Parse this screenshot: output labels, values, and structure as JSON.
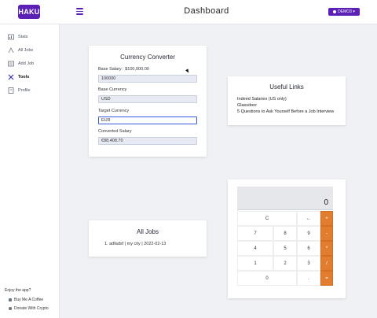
{
  "header": {
    "logo": "HAKU",
    "title": "Dashboard",
    "user_button": "DEMO3 ▾"
  },
  "sidebar": {
    "items": [
      {
        "label": "Stats",
        "icon": "stats-icon"
      },
      {
        "label": "All Jobs",
        "icon": "jobs-icon"
      },
      {
        "label": "Add Job",
        "icon": "add-job-icon"
      },
      {
        "label": "Tools",
        "icon": "tools-icon",
        "active": true
      },
      {
        "label": "Profile",
        "icon": "profile-icon"
      }
    ],
    "enjoy": "Enjoy the app?",
    "coffee": "Buy Me A Coffee",
    "crypto": "Donate With Crypto"
  },
  "converter": {
    "title": "Currency Converter",
    "base_salary_label": "Base Salary : $100,000.00",
    "base_salary_value": "100000",
    "base_currency_label": "Base Currency",
    "base_currency_value": "USD",
    "target_currency_label": "Target Currency",
    "target_currency_value": "EUR",
    "converted_label": "Converted Salary",
    "converted_value": "€88,408.70"
  },
  "links": {
    "title": "Useful Links",
    "items": [
      "Indeed Salaries (US only)",
      "Glassdoor",
      "5 Questions to Ask Yourself Before a Job Interview"
    ]
  },
  "jobs": {
    "title": "All Jobs",
    "items": [
      "1. adfadsf | my city | 2022-02-13"
    ]
  },
  "calculator": {
    "display": "0",
    "keys": {
      "c": "C",
      "back": "←",
      "plus": "+",
      "seven": "7",
      "eight": "8",
      "nine": "9",
      "minus": "-",
      "four": "4",
      "five": "5",
      "six": "6",
      "multiply": "*",
      "one": "1",
      "two": "2",
      "three": "3",
      "divide": "/",
      "zero": "0",
      "dot": ".",
      "equals": "="
    }
  },
  "colors": {
    "brand": "#5b21b6",
    "operator": "#e07d2f"
  }
}
